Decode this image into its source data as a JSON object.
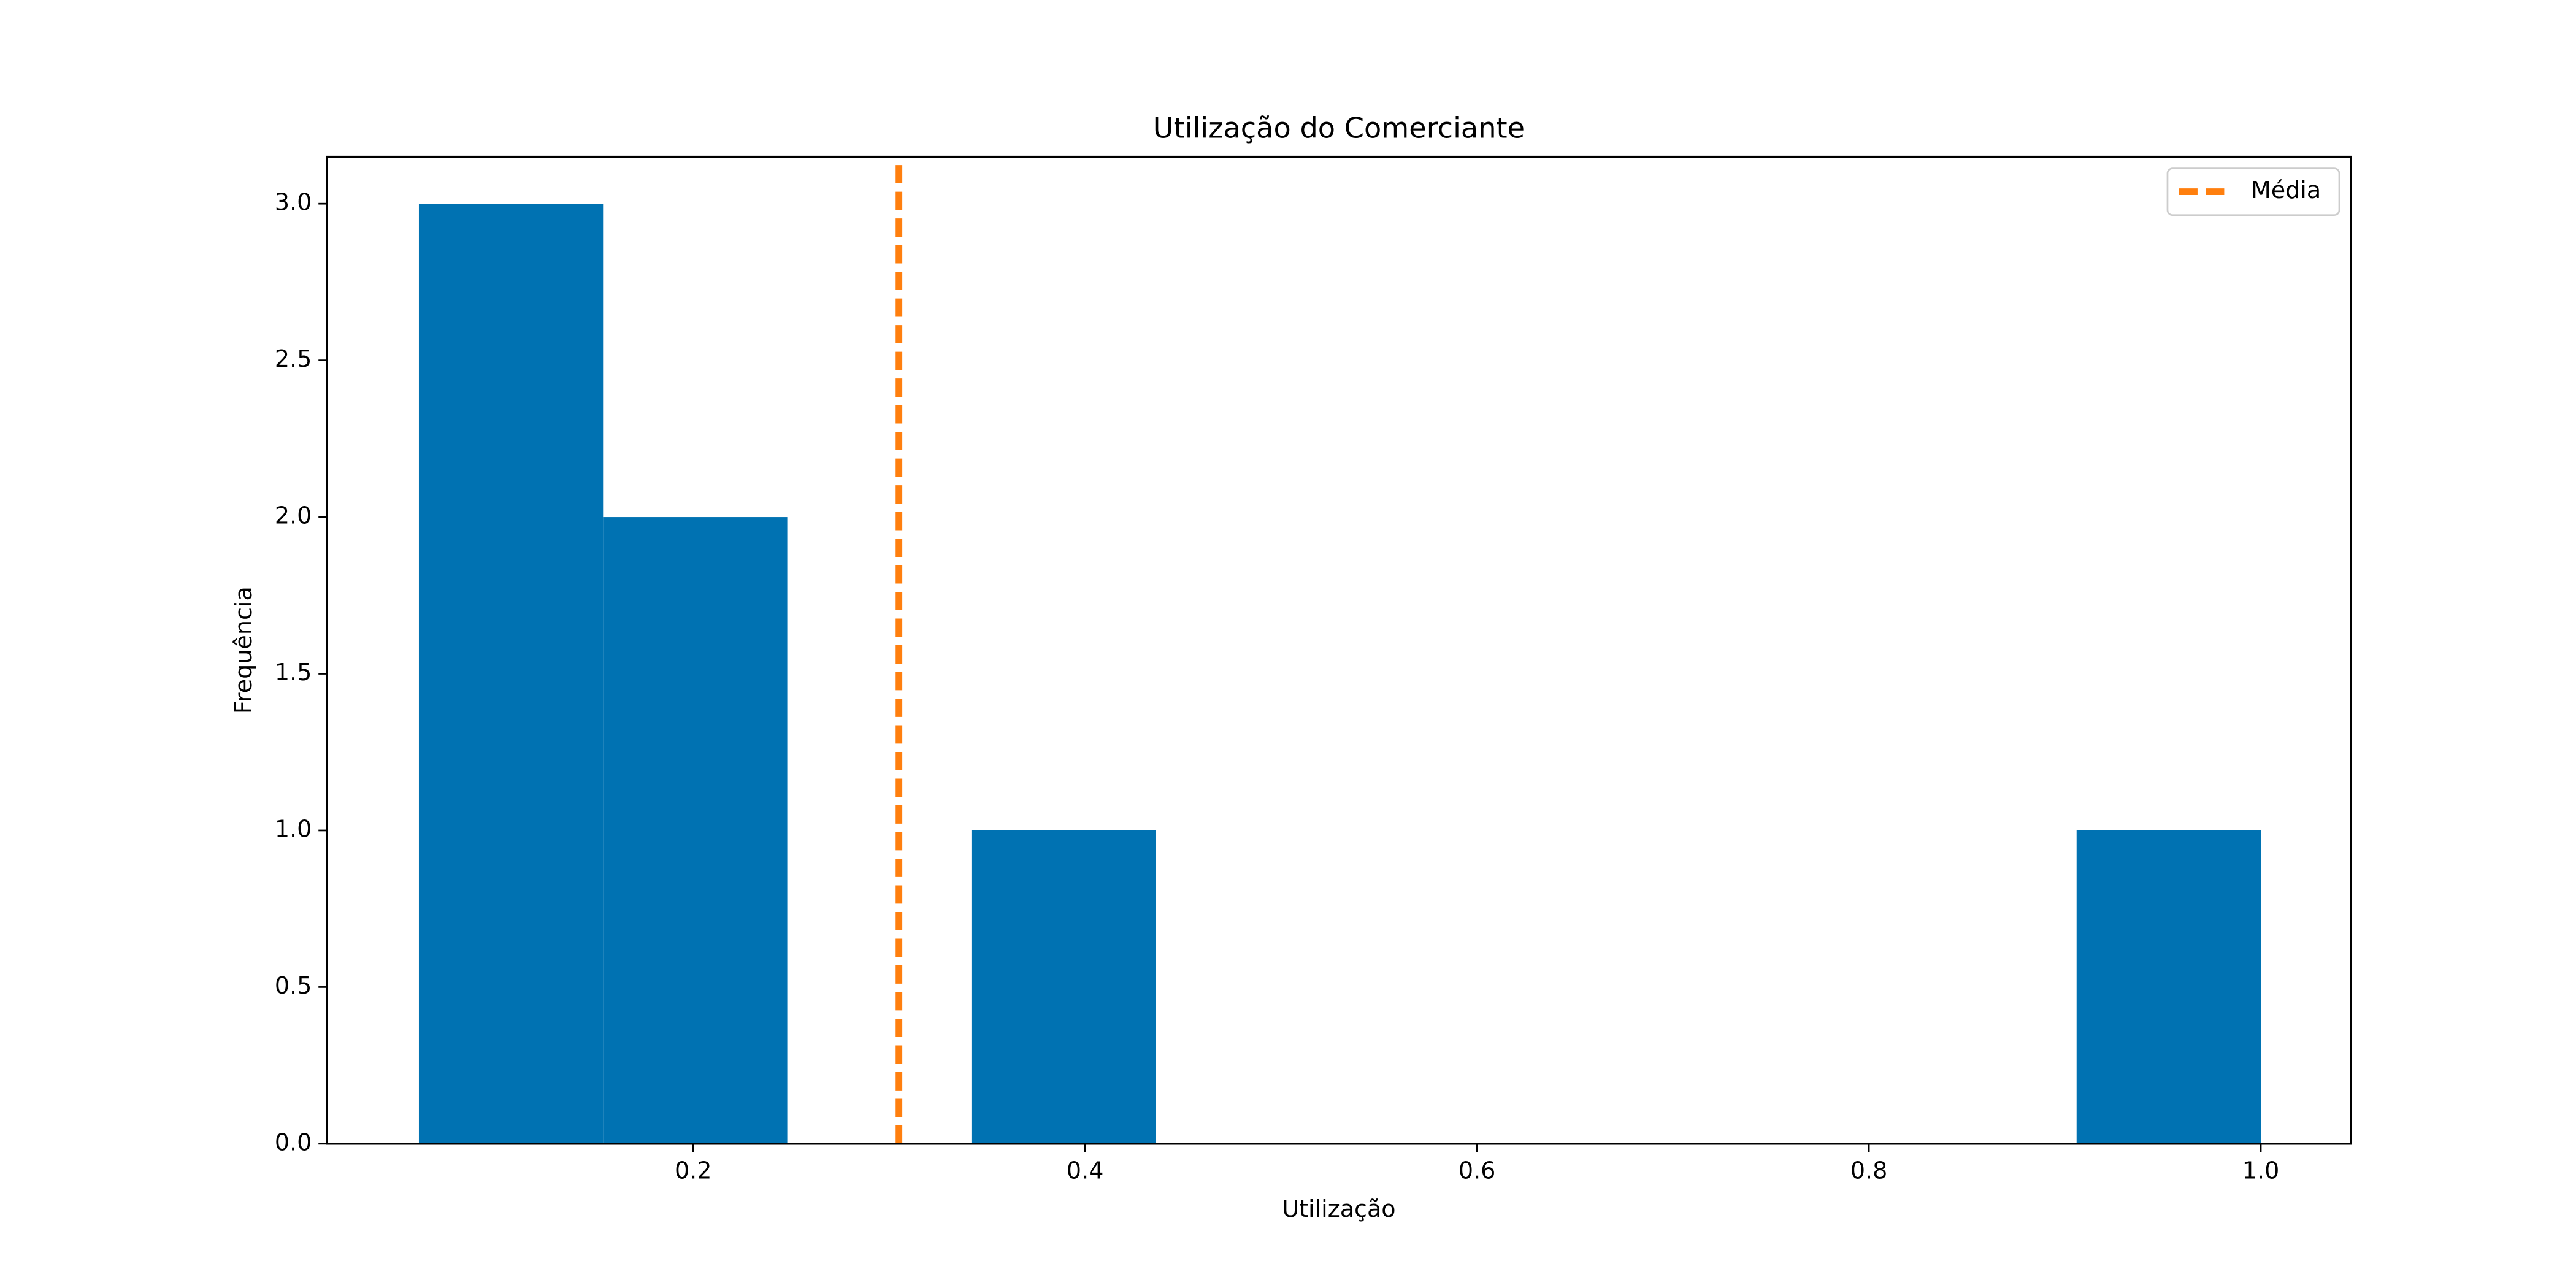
{
  "chart_data": {
    "type": "histogram",
    "title": "Utilização do Comerciante",
    "x_label": "Utilização",
    "y_label": "Frequência",
    "bins": [
      0.06,
      0.154,
      0.248,
      0.342,
      0.436,
      0.53,
      0.624,
      0.718,
      0.812,
      0.906,
      1.0
    ],
    "values": [
      3,
      2,
      0,
      1,
      0,
      0,
      0,
      0,
      0,
      1
    ],
    "color": "#0072b2",
    "mean_line": {
      "name": "Média",
      "value": 0.305,
      "color": "#ff7f0e"
    },
    "xlim": [
      0.013,
      1.046
    ],
    "xticks": [
      0.2,
      0.4,
      0.6,
      0.8,
      {
        "value": 1.0,
        "label": "1.0"
      }
    ],
    "ylim": [
      0,
      3.15
    ],
    "yticks": [
      {
        "value": 0,
        "label": "0.0"
      },
      {
        "value": 0.5,
        "label": "0.5"
      },
      {
        "value": 1,
        "label": "1.0"
      },
      {
        "value": 1.5,
        "label": "1.5"
      },
      {
        "value": 2,
        "label": "2.0"
      },
      {
        "value": 2.5,
        "label": "2.5"
      },
      {
        "value": 3,
        "label": "3.0"
      }
    ],
    "grid": false,
    "legend": "upper right"
  }
}
